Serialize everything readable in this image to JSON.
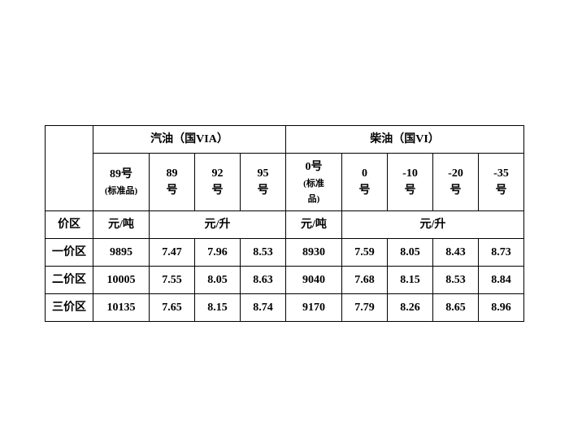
{
  "table": {
    "font_family": "SimSun",
    "border_color": "#000000",
    "background_color": "#ffffff",
    "header": {
      "group_gasoline": "汽油（国VIA）",
      "group_diesel": "柴油（国VI）",
      "gas_std_line1": "89号",
      "gas_std_line2": "(标准品)",
      "gas_89_l1": "89",
      "gas_89_l2": "号",
      "gas_92_l1": "92",
      "gas_92_l2": "号",
      "gas_95_l1": "95",
      "gas_95_l2": "号",
      "diesel_std_l1": "0号",
      "diesel_std_l2": "(标准",
      "diesel_std_l3": "品)",
      "diesel_0_l1": "0",
      "diesel_0_l2": "号",
      "diesel_m10_l1": "-10",
      "diesel_m10_l2": "号",
      "diesel_m20_l1": "-20",
      "diesel_m20_l2": "号",
      "diesel_m35_l1": "-35",
      "diesel_m35_l2": "号"
    },
    "unit_row": {
      "region_label": "价区",
      "yuan_per_ton_1": "元/吨",
      "yuan_per_liter_1": "元/升",
      "yuan_per_ton_2": "元/吨",
      "yuan_per_liter_2": "元/升"
    },
    "rows": [
      {
        "region": "一价区",
        "gas_std": "9895",
        "gas_89": "7.47",
        "gas_92": "7.96",
        "gas_95": "8.53",
        "diesel_std": "8930",
        "d_0": "7.59",
        "d_m10": "8.05",
        "d_m20": "8.43",
        "d_m35": "8.73"
      },
      {
        "region": "二价区",
        "gas_std": "10005",
        "gas_89": "7.55",
        "gas_92": "8.05",
        "gas_95": "8.63",
        "diesel_std": "9040",
        "d_0": "7.68",
        "d_m10": "8.15",
        "d_m20": "8.53",
        "d_m35": "8.84"
      },
      {
        "region": "三价区",
        "gas_std": "10135",
        "gas_89": "7.65",
        "gas_92": "8.15",
        "gas_95": "8.74",
        "diesel_std": "9170",
        "d_0": "7.79",
        "d_m10": "8.26",
        "d_m20": "8.65",
        "d_m35": "8.96"
      }
    ]
  }
}
